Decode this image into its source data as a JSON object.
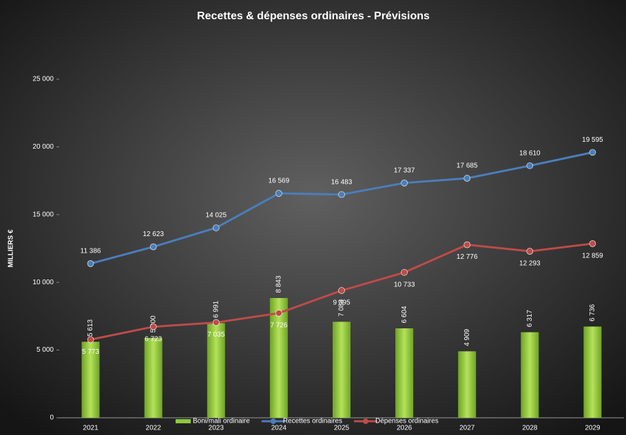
{
  "chart_data": {
    "type": "bar-line",
    "title": "Recettes & dépenses ordinaires - Prévisions",
    "y_label": "MILLIERS €",
    "categories": [
      "2021",
      "2022",
      "2023",
      "2024",
      "2025",
      "2026",
      "2027",
      "2028",
      "2029"
    ],
    "series": [
      {
        "name": "Boni/mali ordinaire",
        "kind": "bar",
        "color": "#8fc93a",
        "values": [
          5613,
          5900,
          6991,
          8843,
          7088,
          6604,
          4909,
          6317,
          6736
        ],
        "value_labels": [
          "5 613",
          "5 900",
          "6 991",
          "8 843",
          "7 088",
          "6 604",
          "4 909",
          "6 317",
          "6 736"
        ]
      },
      {
        "name": "Recettes ordinaires",
        "kind": "line",
        "color": "#4a7ebb",
        "values": [
          11386,
          12623,
          14025,
          16569,
          16483,
          17337,
          17685,
          18610,
          19595
        ],
        "value_labels": [
          "11 386",
          "12 623",
          "14 025",
          "16 569",
          "16 483",
          "17 337",
          "17 685",
          "18 610",
          "19 595"
        ]
      },
      {
        "name": "Dépenses ordinaires",
        "kind": "line",
        "color": "#be4b48",
        "values": [
          5773,
          6723,
          7035,
          7726,
          9395,
          10733,
          12776,
          12293,
          12859
        ],
        "value_labels": [
          "5 773",
          "6 723",
          "7 035",
          "7 726",
          "9 395",
          "10 733",
          "12 776",
          "12 293",
          "12 859"
        ]
      }
    ],
    "ylim": [
      0,
      25000
    ],
    "yticks": [
      0,
      {
        "value": 5000,
        "label": "5 000"
      },
      {
        "value": 10000,
        "label": "10 000"
      },
      {
        "value": 15000,
        "label": "15 000"
      },
      {
        "value": 20000,
        "label": "20 000"
      },
      {
        "value": 25000,
        "label": "25 000"
      }
    ],
    "legend": "bottom",
    "grid": false
  }
}
